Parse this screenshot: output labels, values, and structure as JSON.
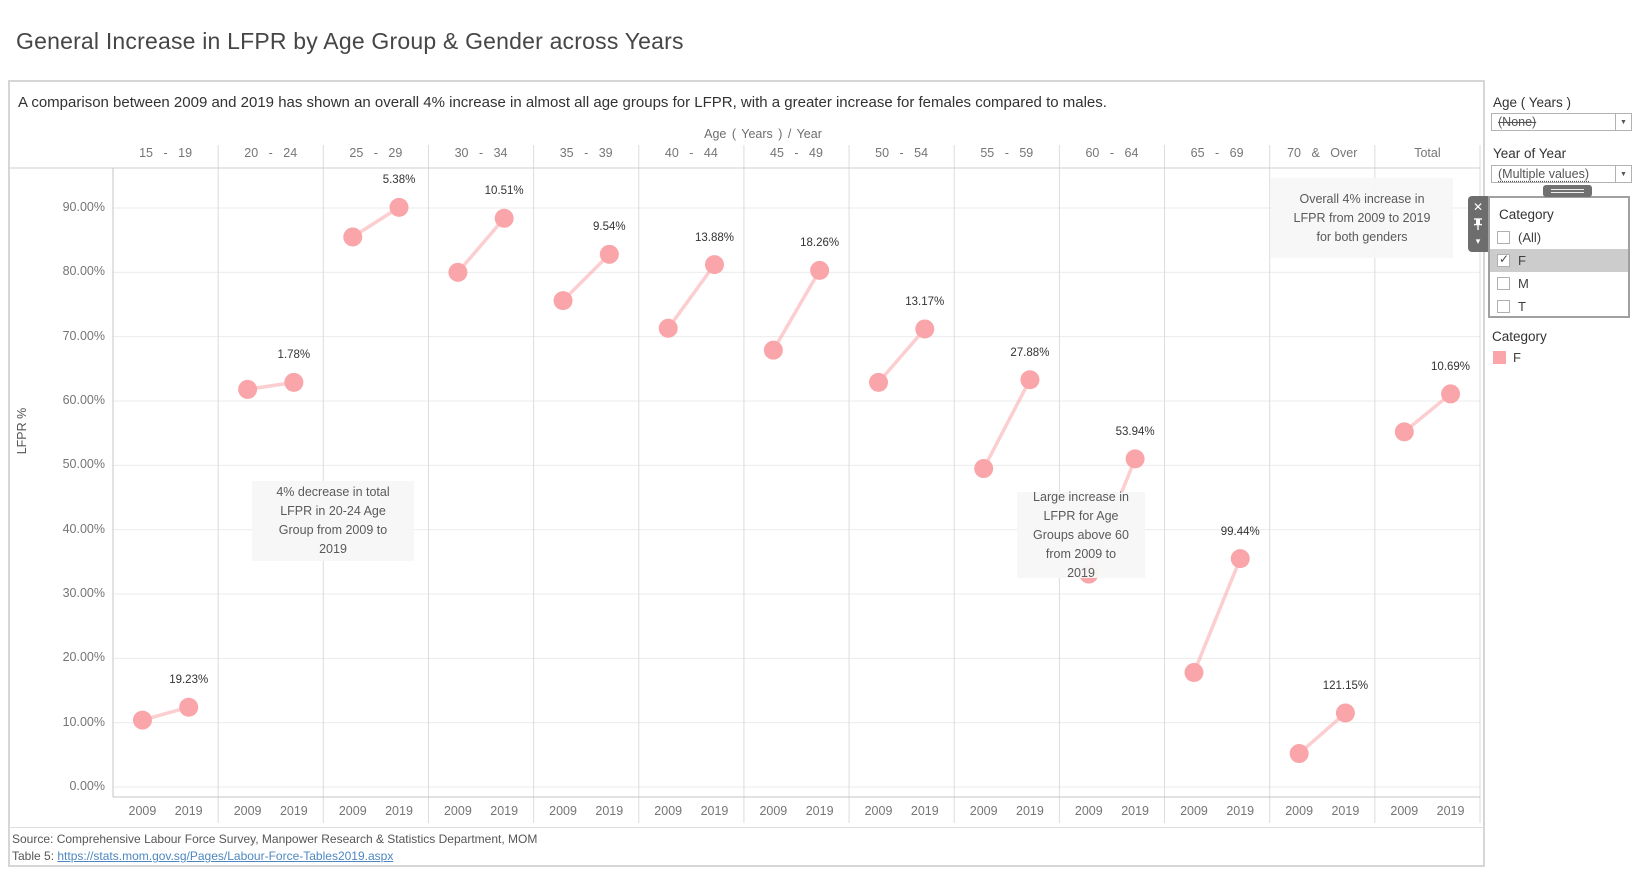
{
  "page_title": "General Increase in LFPR by Age Group & Gender across Years",
  "subtitle": "A comparison between 2009 and 2019 has shown an overall 4% increase in almost all age groups for LFPR, with a greater increase for females compared to males.",
  "chart_data": {
    "type": "line",
    "title": "General Increase in LFPR by Age Group & Gender across Years",
    "top_axis_label": "Age ( Years ) / Year",
    "ylabel": "LFPR %",
    "xlabel": "Age ( Years ) / Year",
    "categories": [
      "15 - 19",
      "20 - 24",
      "25 - 29",
      "30 - 34",
      "35 - 39",
      "40 - 44",
      "45 - 49",
      "50 - 54",
      "55 - 59",
      "60 - 64",
      "65 - 69",
      "70 & Over",
      "Total"
    ],
    "x_years": [
      "2009",
      "2019"
    ],
    "series": [
      {
        "name": "F 2009",
        "values": [
          10.4,
          61.8,
          85.5,
          80.0,
          75.6,
          71.3,
          67.9,
          62.9,
          49.5,
          33.1,
          17.8,
          5.2,
          55.2
        ]
      },
      {
        "name": "F 2019",
        "values": [
          12.4,
          62.9,
          90.1,
          88.4,
          82.8,
          81.2,
          80.3,
          71.2,
          63.3,
          51.0,
          35.5,
          11.5,
          61.1
        ]
      }
    ],
    "pct_change_labels": [
      "19.23%",
      "1.78%",
      "5.38%",
      "10.51%",
      "9.54%",
      "13.88%",
      "18.26%",
      "13.17%",
      "27.88%",
      "53.94%",
      "99.44%",
      "121.15%",
      "10.69%"
    ],
    "yticks": [
      "90.00%",
      "80.00%",
      "70.00%",
      "60.00%",
      "50.00%",
      "40.00%",
      "30.00%",
      "20.00%",
      "10.00%",
      "0.00%"
    ],
    "ytick_values": [
      90,
      80,
      70,
      60,
      50,
      40,
      30,
      20,
      10,
      0
    ],
    "ylim": [
      0,
      96.5
    ],
    "grid": true,
    "legend_position": "right",
    "marker_color": "#F9A5A9",
    "connector_color": "rgba(249,165,169,0.55)"
  },
  "annotations": [
    {
      "id": "ann-2024",
      "lines": [
        "4% decrease in  total",
        "LFPR in 20-24 Age",
        "Group from 2009 to",
        "2019"
      ]
    },
    {
      "id": "ann-60plus",
      "lines": [
        "Large increase in",
        "LFPR for Age",
        "Groups above 60",
        "from 2009 to",
        "2019"
      ]
    },
    {
      "id": "ann-overall",
      "lines": [
        "Overall 4% increase in",
        "LFPR from 2009 to 2019",
        "for both genders"
      ]
    }
  ],
  "filters": {
    "age_filter": {
      "title": "Age ( Years )",
      "value": "(None)"
    },
    "year_filter": {
      "title": "Year of Year",
      "value": "(Multiple values)"
    },
    "category_filter": {
      "title": "Category",
      "options": [
        {
          "label": "(All)",
          "checked": false,
          "highlighted": false
        },
        {
          "label": "F",
          "checked": true,
          "highlighted": true
        },
        {
          "label": "M",
          "checked": false,
          "highlighted": false
        },
        {
          "label": "T",
          "checked": false,
          "highlighted": false
        }
      ]
    }
  },
  "legend": {
    "title": "Category",
    "items": [
      {
        "label": "F",
        "color": "#F9A5A9"
      }
    ]
  },
  "footer": {
    "source_line": "Source: Comprehensive Labour Force Survey, Manpower Research & Statistics Department, MOM",
    "table_label": "Table 5: ",
    "table_link": "https://stats.mom.gov.sg/Pages/Labour-Force-Tables2019.aspx"
  }
}
